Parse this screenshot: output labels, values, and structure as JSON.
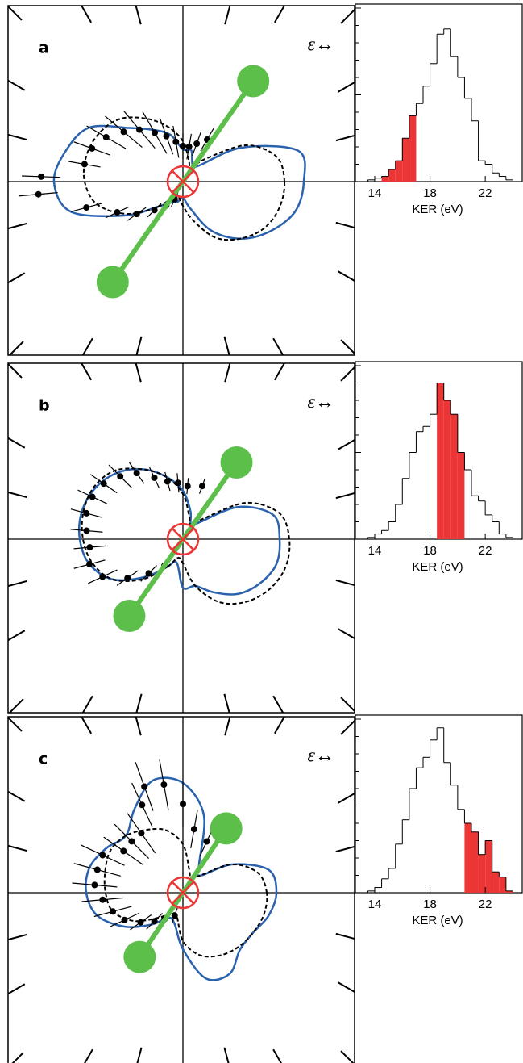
{
  "chart_data": [
    {
      "type": "polar",
      "label": "a",
      "annotation": "ε↔",
      "rlim": [
        0,
        1.08
      ],
      "theta": [
        0,
        15,
        30,
        45,
        60,
        75,
        90,
        105,
        120,
        135,
        150,
        165,
        180,
        195,
        210,
        225,
        240,
        255,
        270,
        285,
        300,
        315,
        330,
        345
      ],
      "series": [
        {
          "color": "#2a62ad",
          "style": "solid",
          "values": [
            0.75,
            0.74,
            0.42,
            0.14,
            0.12,
            0.2,
            0.2,
            0.3,
            0.37,
            0.47,
            0.67,
            0.75,
            0.8,
            0.72,
            0.42,
            0.22,
            0.15,
            0.13,
            0.1,
            0.17,
            0.35,
            0.5,
            0.62,
            0.72
          ]
        },
        {
          "color": "#000000",
          "style": "dashed",
          "values": [
            0.63,
            0.6,
            0.45,
            0.2,
            0.1,
            0.14,
            0.25,
            0.35,
            0.45,
            0.55,
            0.6,
            0.62,
            0.61,
            0.55,
            0.4,
            0.22,
            0.1,
            0.1,
            0.15,
            0.25,
            0.4,
            0.5,
            0.58,
            0.62
          ]
        }
      ],
      "points": {
        "theta": [
          60,
          70,
          80,
          90,
          100,
          110,
          120,
          130,
          140,
          150,
          160,
          170,
          178,
          185,
          195,
          205,
          215,
          225,
          235,
          245
        ],
        "r": [
          0.3,
          0.25,
          0.22,
          0.22,
          0.25,
          0.3,
          0.35,
          0.42,
          0.48,
          0.55,
          0.6,
          0.62,
          0.88,
          0.9,
          0.62,
          0.45,
          0.35,
          0.25,
          0.18,
          0.12
        ],
        "err": [
          0.08,
          0.08,
          0.08,
          0.08,
          0.1,
          0.12,
          0.15,
          0.15,
          0.15,
          0.14,
          0.12,
          0.1,
          0.12,
          0.12,
          0.1,
          0.08,
          0.07,
          0.06,
          0.05,
          0.05
        ]
      },
      "molecule_angle": 55,
      "molecule_length": 0.76,
      "molecule_color": "#5cbf4a"
    },
    {
      "type": "histogram",
      "xlabel": "KER (eV)",
      "bins": [
        13,
        13.5,
        14,
        14.5,
        15,
        15.5,
        16,
        16.5,
        17,
        17.5,
        18,
        18.5,
        19,
        19.5,
        20,
        20.5,
        21,
        21.5,
        22,
        22.5,
        23,
        23.5,
        24
      ],
      "counts": [
        0,
        1,
        2,
        3,
        7,
        12,
        25,
        38,
        45,
        55,
        68,
        85,
        88,
        72,
        60,
        48,
        35,
        12,
        10,
        5,
        3,
        1
      ],
      "highlight_range": [
        14.5,
        17
      ],
      "highlight_color": "#ec3535",
      "xlim": [
        12.6,
        24.5
      ],
      "xticks": [
        14,
        18,
        22
      ],
      "ylim": [
        0,
        100
      ],
      "yticks": [
        0,
        10,
        20,
        30,
        40,
        50,
        60,
        70,
        80,
        90,
        100
      ]
    },
    {
      "type": "polar",
      "label": "b",
      "annotation": "ε↔",
      "rlim": [
        0,
        1.08
      ],
      "theta": [
        0,
        15,
        30,
        45,
        60,
        75,
        90,
        105,
        120,
        135,
        150,
        165,
        180,
        195,
        210,
        225,
        240,
        255,
        270,
        285,
        300,
        315,
        330,
        345
      ],
      "series": [
        {
          "color": "#2a62ad",
          "style": "solid",
          "values": [
            0.6,
            0.58,
            0.4,
            0.15,
            0.1,
            0.18,
            0.3,
            0.4,
            0.5,
            0.58,
            0.63,
            0.65,
            0.64,
            0.6,
            0.5,
            0.33,
            0.2,
            0.15,
            0.3,
            0.3,
            0.38,
            0.48,
            0.55,
            0.6
          ]
        },
        {
          "color": "#000000",
          "style": "dashed",
          "values": [
            0.66,
            0.62,
            0.45,
            0.18,
            0.1,
            0.15,
            0.28,
            0.4,
            0.5,
            0.6,
            0.64,
            0.64,
            0.62,
            0.58,
            0.5,
            0.35,
            0.2,
            0.12,
            0.15,
            0.3,
            0.45,
            0.55,
            0.62,
            0.66
          ]
        }
      ],
      "points": {
        "theta": [
          70,
          85,
          95,
          105,
          115,
          125,
          135,
          145,
          155,
          165,
          175,
          185,
          195,
          205,
          215,
          225,
          235
        ],
        "r": [
          0.35,
          0.33,
          0.35,
          0.37,
          0.42,
          0.5,
          0.55,
          0.6,
          0.62,
          0.62,
          0.6,
          0.58,
          0.6,
          0.55,
          0.42,
          0.3,
          0.2
        ],
        "err": [
          0.05,
          0.05,
          0.06,
          0.06,
          0.07,
          0.08,
          0.1,
          0.1,
          0.1,
          0.1,
          0.1,
          0.1,
          0.1,
          0.1,
          0.08,
          0.07,
          0.06
        ]
      },
      "molecule_angle": 55,
      "molecule_length": 0.58,
      "molecule_color": "#5cbf4a"
    },
    {
      "type": "histogram",
      "xlabel": "KER (eV)",
      "bins": [
        13,
        13.5,
        14,
        14.5,
        15,
        15.5,
        16,
        16.5,
        17,
        17.5,
        18,
        18.5,
        19,
        19.5,
        20,
        20.5,
        21,
        21.5,
        22,
        22.5,
        23,
        23.5,
        24
      ],
      "counts": [
        0,
        1,
        3,
        5,
        10,
        20,
        35,
        50,
        62,
        65,
        72,
        90,
        80,
        72,
        50,
        40,
        25,
        22,
        14,
        10,
        3,
        1
      ],
      "highlight_range": [
        18.5,
        20.5
      ],
      "highlight_color": "#ec3535",
      "xlim": [
        12.6,
        24.5
      ],
      "xticks": [
        14,
        18,
        22
      ],
      "ylim": [
        0,
        100
      ],
      "yticks": [
        0,
        10,
        20,
        30,
        40,
        50,
        60,
        70,
        80,
        90,
        100
      ]
    },
    {
      "type": "polar",
      "label": "c",
      "annotation": "ε↔",
      "rlim": [
        0,
        1.08
      ],
      "theta": [
        0,
        15,
        30,
        45,
        60,
        75,
        90,
        105,
        120,
        135,
        150,
        165,
        180,
        195,
        210,
        225,
        240,
        255,
        270,
        285,
        300,
        315,
        330,
        345
      ],
      "series": [
        {
          "color": "#2a62ad",
          "style": "solid",
          "values": [
            0.58,
            0.55,
            0.35,
            0.15,
            0.2,
            0.5,
            0.68,
            0.72,
            0.6,
            0.5,
            0.55,
            0.6,
            0.6,
            0.55,
            0.42,
            0.28,
            0.18,
            0.2,
            0.35,
            0.55,
            0.58,
            0.5,
            0.5,
            0.55
          ]
        },
        {
          "color": "#000000",
          "style": "dashed",
          "values": [
            0.52,
            0.48,
            0.35,
            0.15,
            0.1,
            0.15,
            0.3,
            0.4,
            0.45,
            0.5,
            0.52,
            0.5,
            0.48,
            0.45,
            0.35,
            0.22,
            0.15,
            0.15,
            0.3,
            0.4,
            0.45,
            0.48,
            0.5,
            0.52
          ]
        }
      ],
      "points": {
        "theta": [
          65,
          80,
          90,
          100,
          110,
          115,
          125,
          135,
          145,
          155,
          165,
          175,
          185,
          195,
          205,
          215,
          225,
          235,
          250
        ],
        "r": [
          0.35,
          0.4,
          0.55,
          0.68,
          0.7,
          0.6,
          0.45,
          0.45,
          0.45,
          0.55,
          0.55,
          0.55,
          0.5,
          0.45,
          0.4,
          0.32,
          0.25,
          0.2,
          0.15
        ],
        "err": [
          0.1,
          0.12,
          0.14,
          0.16,
          0.16,
          0.15,
          0.15,
          0.15,
          0.15,
          0.15,
          0.15,
          0.14,
          0.13,
          0.12,
          0.1,
          0.08,
          0.07,
          0.06,
          0.05
        ]
      },
      "molecule_angle": 56,
      "molecule_length": 0.48,
      "molecule_color": "#5cbf4a"
    },
    {
      "type": "histogram",
      "xlabel": "KER (eV)",
      "bins": [
        13,
        13.5,
        14,
        14.5,
        15,
        15.5,
        16,
        16.5,
        17,
        17.5,
        18,
        18.5,
        19,
        19.5,
        20,
        20.5,
        21,
        21.5,
        22,
        22.5,
        23,
        23.5,
        24
      ],
      "counts": [
        0,
        1,
        3,
        8,
        14,
        28,
        42,
        60,
        72,
        78,
        88,
        95,
        75,
        62,
        48,
        40,
        35,
        22,
        30,
        12,
        9,
        1
      ],
      "highlight_range": [
        20.5,
        24
      ],
      "highlight_color": "#ec3535",
      "xlim": [
        12.6,
        24.5
      ],
      "xticks": [
        14,
        18,
        22
      ],
      "ylim": [
        0,
        100
      ],
      "yticks": [
        0,
        10,
        20,
        30,
        40,
        50,
        60,
        70,
        80,
        90,
        100
      ]
    }
  ]
}
